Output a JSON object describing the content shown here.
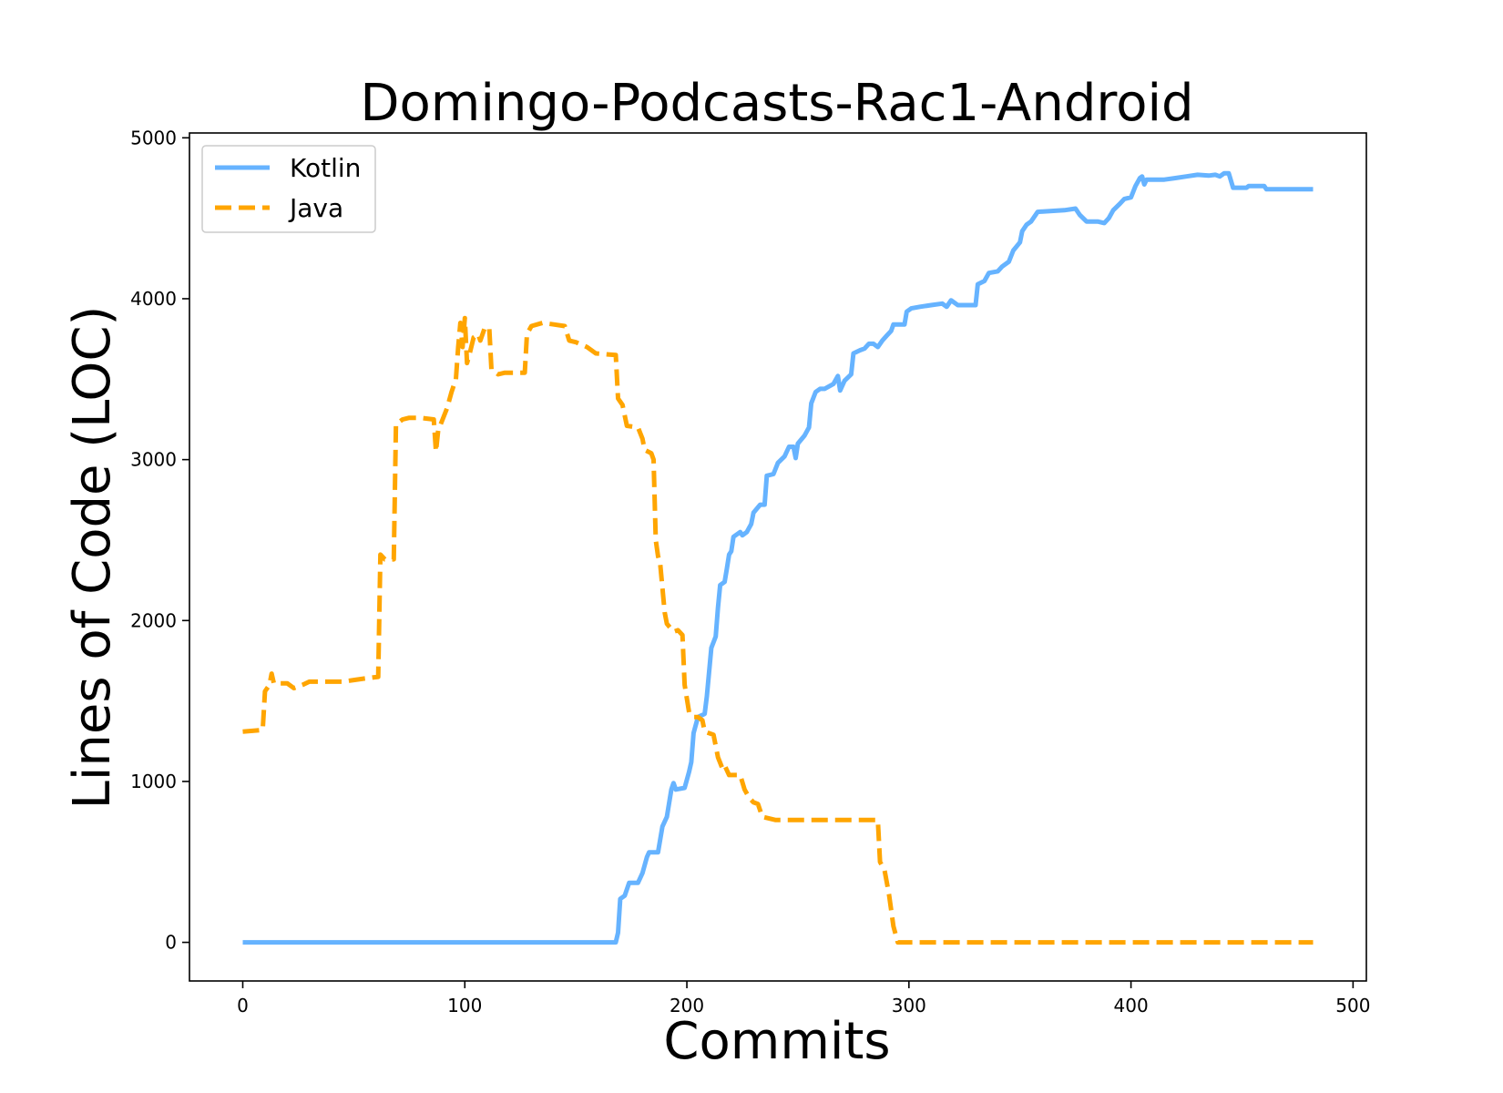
{
  "chart_data": {
    "type": "line",
    "title": "Domingo-Podcasts-Rac1-Android",
    "xlabel": "Commits",
    "ylabel": "Lines of Code (LOC)",
    "xlim": [
      -24,
      506
    ],
    "ylim": [
      -240,
      5030
    ],
    "xticks": [
      0,
      100,
      200,
      300,
      400,
      500
    ],
    "yticks": [
      0,
      1000,
      2000,
      3000,
      4000,
      5000
    ],
    "grid": false,
    "legend_position": "top-left",
    "series": [
      {
        "name": "Kotlin",
        "color": "#66b3ff",
        "style": "solid",
        "points": [
          [
            0,
            0
          ],
          [
            168,
            0
          ],
          [
            169,
            60
          ],
          [
            170,
            270
          ],
          [
            172,
            290
          ],
          [
            174,
            370
          ],
          [
            178,
            370
          ],
          [
            180,
            430
          ],
          [
            182,
            530
          ],
          [
            183,
            560
          ],
          [
            187,
            560
          ],
          [
            189,
            720
          ],
          [
            191,
            780
          ],
          [
            193,
            950
          ],
          [
            194,
            990
          ],
          [
            195,
            950
          ],
          [
            199,
            960
          ],
          [
            201,
            1060
          ],
          [
            202,
            1120
          ],
          [
            203,
            1300
          ],
          [
            205,
            1400
          ],
          [
            208,
            1420
          ],
          [
            209,
            1530
          ],
          [
            211,
            1830
          ],
          [
            213,
            1900
          ],
          [
            214,
            2080
          ],
          [
            215,
            2220
          ],
          [
            217,
            2240
          ],
          [
            218,
            2320
          ],
          [
            219,
            2410
          ],
          [
            220,
            2430
          ],
          [
            221,
            2520
          ],
          [
            224,
            2550
          ],
          [
            225,
            2530
          ],
          [
            227,
            2550
          ],
          [
            229,
            2600
          ],
          [
            230,
            2670
          ],
          [
            233,
            2720
          ],
          [
            235,
            2720
          ],
          [
            236,
            2900
          ],
          [
            239,
            2910
          ],
          [
            241,
            2980
          ],
          [
            244,
            3020
          ],
          [
            246,
            3080
          ],
          [
            248,
            3080
          ],
          [
            249,
            3010
          ],
          [
            250,
            3100
          ],
          [
            253,
            3150
          ],
          [
            255,
            3200
          ],
          [
            256,
            3350
          ],
          [
            258,
            3420
          ],
          [
            260,
            3440
          ],
          [
            262,
            3440
          ],
          [
            266,
            3470
          ],
          [
            268,
            3520
          ],
          [
            269,
            3430
          ],
          [
            271,
            3490
          ],
          [
            274,
            3530
          ],
          [
            275,
            3660
          ],
          [
            278,
            3680
          ],
          [
            280,
            3690
          ],
          [
            282,
            3720
          ],
          [
            284,
            3720
          ],
          [
            286,
            3700
          ],
          [
            288,
            3740
          ],
          [
            290,
            3770
          ],
          [
            292,
            3800
          ],
          [
            293,
            3840
          ],
          [
            298,
            3840
          ],
          [
            299,
            3920
          ],
          [
            301,
            3940
          ],
          [
            305,
            3950
          ],
          [
            310,
            3960
          ],
          [
            315,
            3970
          ],
          [
            317,
            3950
          ],
          [
            319,
            3990
          ],
          [
            322,
            3960
          ],
          [
            330,
            3960
          ],
          [
            331,
            4090
          ],
          [
            334,
            4110
          ],
          [
            336,
            4160
          ],
          [
            340,
            4170
          ],
          [
            342,
            4200
          ],
          [
            345,
            4230
          ],
          [
            347,
            4300
          ],
          [
            350,
            4350
          ],
          [
            351,
            4420
          ],
          [
            353,
            4460
          ],
          [
            355,
            4480
          ],
          [
            358,
            4540
          ],
          [
            370,
            4550
          ],
          [
            375,
            4560
          ],
          [
            377,
            4520
          ],
          [
            380,
            4480
          ],
          [
            385,
            4480
          ],
          [
            388,
            4470
          ],
          [
            390,
            4500
          ],
          [
            392,
            4550
          ],
          [
            395,
            4590
          ],
          [
            397,
            4620
          ],
          [
            400,
            4630
          ],
          [
            402,
            4700
          ],
          [
            404,
            4750
          ],
          [
            405,
            4760
          ],
          [
            406,
            4710
          ],
          [
            407,
            4740
          ],
          [
            415,
            4740
          ],
          [
            420,
            4750
          ],
          [
            425,
            4760
          ],
          [
            430,
            4770
          ],
          [
            435,
            4765
          ],
          [
            438,
            4770
          ],
          [
            440,
            4760
          ],
          [
            442,
            4780
          ],
          [
            444,
            4780
          ],
          [
            446,
            4690
          ],
          [
            452,
            4690
          ],
          [
            453,
            4700
          ],
          [
            460,
            4700
          ],
          [
            461,
            4680
          ],
          [
            482,
            4680
          ]
        ]
      },
      {
        "name": "Java",
        "color": "#ffa500",
        "style": "dashed",
        "points": [
          [
            0,
            1310
          ],
          [
            9,
            1320
          ],
          [
            10,
            1560
          ],
          [
            12,
            1600
          ],
          [
            13,
            1670
          ],
          [
            14,
            1610
          ],
          [
            20,
            1610
          ],
          [
            23,
            1580
          ],
          [
            27,
            1600
          ],
          [
            30,
            1620
          ],
          [
            40,
            1620
          ],
          [
            45,
            1620
          ],
          [
            50,
            1630
          ],
          [
            55,
            1640
          ],
          [
            61,
            1650
          ],
          [
            62,
            2410
          ],
          [
            64,
            2380
          ],
          [
            68,
            2380
          ],
          [
            69,
            3220
          ],
          [
            72,
            3250
          ],
          [
            75,
            3260
          ],
          [
            80,
            3260
          ],
          [
            86,
            3250
          ],
          [
            87,
            3050
          ],
          [
            88,
            3180
          ],
          [
            90,
            3250
          ],
          [
            92,
            3320
          ],
          [
            94,
            3420
          ],
          [
            96,
            3500
          ],
          [
            97,
            3700
          ],
          [
            98,
            3850
          ],
          [
            99,
            3700
          ],
          [
            100,
            3880
          ],
          [
            101,
            3600
          ],
          [
            102,
            3650
          ],
          [
            104,
            3760
          ],
          [
            106,
            3780
          ],
          [
            107,
            3740
          ],
          [
            109,
            3820
          ],
          [
            111,
            3820
          ],
          [
            112,
            3560
          ],
          [
            115,
            3530
          ],
          [
            118,
            3540
          ],
          [
            122,
            3540
          ],
          [
            127,
            3540
          ],
          [
            128,
            3780
          ],
          [
            130,
            3830
          ],
          [
            135,
            3850
          ],
          [
            140,
            3840
          ],
          [
            145,
            3830
          ],
          [
            147,
            3740
          ],
          [
            150,
            3730
          ],
          [
            155,
            3700
          ],
          [
            159,
            3660
          ],
          [
            168,
            3650
          ],
          [
            169,
            3380
          ],
          [
            171,
            3340
          ],
          [
            173,
            3210
          ],
          [
            178,
            3200
          ],
          [
            180,
            3130
          ],
          [
            181,
            3060
          ],
          [
            184,
            3040
          ],
          [
            185,
            3000
          ],
          [
            186,
            2500
          ],
          [
            187,
            2400
          ],
          [
            188,
            2350
          ],
          [
            190,
            2050
          ],
          [
            191,
            1980
          ],
          [
            194,
            1930
          ],
          [
            196,
            1940
          ],
          [
            198,
            1910
          ],
          [
            199,
            1600
          ],
          [
            201,
            1430
          ],
          [
            203,
            1400
          ],
          [
            205,
            1400
          ],
          [
            207,
            1380
          ],
          [
            208,
            1310
          ],
          [
            212,
            1290
          ],
          [
            214,
            1150
          ],
          [
            216,
            1080
          ],
          [
            217,
            1100
          ],
          [
            219,
            1040
          ],
          [
            224,
            1040
          ],
          [
            226,
            950
          ],
          [
            228,
            900
          ],
          [
            230,
            870
          ],
          [
            232,
            860
          ],
          [
            234,
            780
          ],
          [
            240,
            760
          ],
          [
            250,
            760
          ],
          [
            270,
            760
          ],
          [
            286,
            760
          ],
          [
            287,
            500
          ],
          [
            289,
            450
          ],
          [
            291,
            300
          ],
          [
            293,
            100
          ],
          [
            295,
            0
          ],
          [
            482,
            0
          ]
        ]
      }
    ]
  }
}
